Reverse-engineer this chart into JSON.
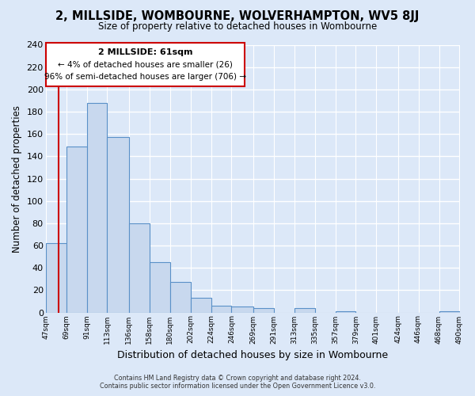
{
  "title": "2, MILLSIDE, WOMBOURNE, WOLVERHAMPTON, WV5 8JJ",
  "subtitle": "Size of property relative to detached houses in Wombourne",
  "xlabel": "Distribution of detached houses by size in Wombourne",
  "ylabel": "Number of detached properties",
  "bar_edges": [
    47,
    69,
    91,
    113,
    136,
    158,
    180,
    202,
    224,
    246,
    269,
    291,
    313,
    335,
    357,
    379,
    401,
    424,
    446,
    468,
    490
  ],
  "bar_heights": [
    62,
    149,
    188,
    157,
    80,
    45,
    27,
    13,
    6,
    5,
    4,
    0,
    4,
    0,
    1,
    0,
    0,
    0,
    0,
    1
  ],
  "tick_labels": [
    "47sqm",
    "69sqm",
    "91sqm",
    "113sqm",
    "136sqm",
    "158sqm",
    "180sqm",
    "202sqm",
    "224sqm",
    "246sqm",
    "269sqm",
    "291sqm",
    "313sqm",
    "335sqm",
    "357sqm",
    "379sqm",
    "401sqm",
    "424sqm",
    "446sqm",
    "468sqm",
    "490sqm"
  ],
  "bar_color": "#c8d8ee",
  "bar_edge_color": "#5a90c8",
  "property_sqm": 61,
  "red_line_color": "#cc0000",
  "annotation_title": "2 MILLSIDE: 61sqm",
  "annotation_line1": "← 4% of detached houses are smaller (26)",
  "annotation_line2": "96% of semi-detached houses are larger (706) →",
  "ylim": [
    0,
    240
  ],
  "yticks": [
    0,
    20,
    40,
    60,
    80,
    100,
    120,
    140,
    160,
    180,
    200,
    220,
    240
  ],
  "footer_line1": "Contains HM Land Registry data © Crown copyright and database right 2024.",
  "footer_line2": "Contains public sector information licensed under the Open Government Licence v3.0.",
  "bg_color": "#dce8f8",
  "plot_bg_color": "#dce8f8",
  "grid_color": "#ffffff",
  "annotation_box_facecolor": "#ffffff",
  "annotation_box_edgecolor": "#cc0000"
}
